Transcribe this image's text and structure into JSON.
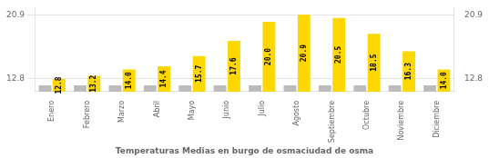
{
  "chart_data": {
    "type": "bar",
    "title": "Temperaturas Medias en burgo de osmaciudad de osma",
    "categories": [
      "Enero",
      "Febrero",
      "Marzo",
      "Abril",
      "Mayo",
      "Junio",
      "Julio",
      "Agosto",
      "Septiembre",
      "Octubre",
      "Noviembre",
      "Diciembre"
    ],
    "series": [
      {
        "color": "#BCBCBC",
        "values": [
          12.0,
          12.0,
          12.0,
          12.0,
          12.0,
          12.0,
          12.0,
          12.0,
          12.0,
          12.0,
          12.0,
          12.0
        ]
      },
      {
        "color": "#FFD700",
        "values": [
          12.8,
          13.2,
          14.0,
          14.4,
          15.7,
          17.6,
          20.0,
          20.9,
          20.5,
          18.5,
          16.3,
          14.0
        ],
        "value_labels": [
          "12.8",
          "13.2",
          "14.0",
          "14.4",
          "15.7",
          "17.6",
          "20.0",
          "20.9",
          "20.5",
          "18.5",
          "16.3",
          "14.0"
        ],
        "data_labels": true
      }
    ],
    "ylim": [
      11.2,
      21.8
    ],
    "yticks": [
      12.8,
      20.9
    ],
    "y2lim": [
      11.2,
      21.8
    ],
    "y2ticks": [
      12.8,
      20.9
    ],
    "grid": true
  }
}
